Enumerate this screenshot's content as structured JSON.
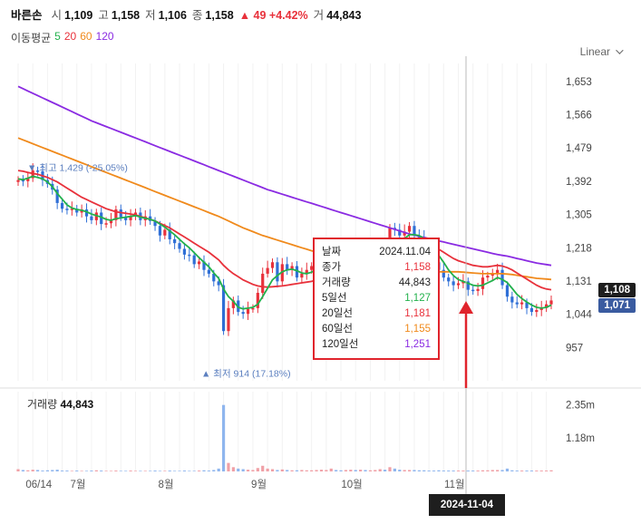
{
  "header": {
    "name": "바른손",
    "open_label": "시",
    "open": "1,109",
    "high_label": "고",
    "high": "1,158",
    "low_label": "저",
    "low": "1,106",
    "close_label": "종",
    "close": "1,158",
    "change": "▲ 49 +4.42%",
    "volume_label": "거",
    "volume": "44,843"
  },
  "moving_avg": {
    "label": "이동평균",
    "periods": [
      {
        "label": "5",
        "color": "#22b14c"
      },
      {
        "label": "20",
        "color": "#e8313b"
      },
      {
        "label": "60",
        "color": "#f08a1c"
      },
      {
        "label": "120",
        "color": "#8a2be2"
      }
    ]
  },
  "scale_mode": "Linear",
  "tooltip": {
    "rows": [
      {
        "label": "날짜",
        "value": "2024.11.04",
        "color": "#222222"
      },
      {
        "label": "종가",
        "value": "1,158",
        "color": "#e8313b"
      },
      {
        "label": "거래량",
        "value": "44,843",
        "color": "#222222"
      },
      {
        "label": "5일선",
        "value": "1,127",
        "color": "#22b14c"
      },
      {
        "label": "20일선",
        "value": "1,181",
        "color": "#e8313b"
      },
      {
        "label": "60일선",
        "value": "1,155",
        "color": "#f08a1c"
      },
      {
        "label": "120일선",
        "value": "1,251",
        "color": "#8a2be2"
      }
    ]
  },
  "volume_panel": {
    "label": "거래량",
    "value": "44,843"
  },
  "crosshair_date": "2024-11-04",
  "price_tags": [
    {
      "value": "1,108",
      "price": 1108,
      "color": "#1e1e1e"
    },
    {
      "value": "1,071",
      "price": 1071,
      "color": "#3a5ba0"
    }
  ],
  "colors": {
    "up": "#e8313b",
    "down": "#2f6fd6",
    "grid": "#eeeeee",
    "annotation_arrow": "#e0242c"
  },
  "chart_data": {
    "type": "candlestick",
    "y_axis": {
      "ticks": [
        1653,
        1566,
        1479,
        1392,
        1305,
        1218,
        1131,
        1044,
        957
      ],
      "range": [
        870,
        1700
      ],
      "scale": "linear"
    },
    "x_axis": {
      "labels": [
        "06/14",
        "7월",
        "8월",
        "9월",
        "10월",
        "11월"
      ]
    },
    "volume_axis": {
      "ticks": [
        "2.35m",
        "1.18m"
      ],
      "max": 2.5
    },
    "annotations": {
      "max": {
        "label": "▼ 최고 1,429 (-25.05%)",
        "value": 1429
      },
      "min": {
        "label": "▲ 최저 914 (17.18%)",
        "value": 914
      }
    },
    "close": [
      1395,
      1392,
      1400,
      1420,
      1418,
      1395,
      1385,
      1370,
      1335,
      1320,
      1318,
      1320,
      1310,
      1318,
      1300,
      1290,
      1310,
      1280,
      1282,
      1290,
      1318,
      1298,
      1290,
      1300,
      1310,
      1290,
      1300,
      1288,
      1275,
      1250,
      1265,
      1240,
      1230,
      1215,
      1200,
      1198,
      1175,
      1182,
      1160,
      1150,
      1130,
      1120,
      1000,
      1060,
      1080,
      1050,
      1045,
      1058,
      1060,
      1100,
      1150,
      1165,
      1180,
      1130,
      1175,
      1160,
      1170,
      1140,
      1150,
      1160,
      1170,
      1180,
      1190,
      1210,
      1220,
      1180,
      1130,
      1150,
      1180,
      1160,
      1205,
      1150,
      1160,
      1175,
      1200,
      1195,
      1270,
      1265,
      1250,
      1260,
      1275,
      1250,
      1245,
      1220,
      1200,
      1180,
      1160,
      1140,
      1130,
      1120,
      1125,
      1130,
      1108,
      1105,
      1110,
      1140,
      1145,
      1150,
      1160,
      1120,
      1090,
      1075,
      1070,
      1075,
      1060,
      1050,
      1055,
      1060,
      1070,
      1080
    ],
    "ma5": [
      1398,
      1396,
      1400,
      1405,
      1402,
      1398,
      1390,
      1378,
      1360,
      1345,
      1330,
      1322,
      1318,
      1316,
      1312,
      1306,
      1302,
      1298,
      1292,
      1290,
      1294,
      1296,
      1298,
      1300,
      1302,
      1298,
      1295,
      1292,
      1288,
      1280,
      1272,
      1262,
      1252,
      1240,
      1228,
      1218,
      1205,
      1192,
      1180,
      1168,
      1152,
      1138,
      1110,
      1090,
      1078,
      1062,
      1058,
      1060,
      1062,
      1070,
      1090,
      1112,
      1134,
      1145,
      1155,
      1160,
      1162,
      1158,
      1152,
      1150,
      1154,
      1162,
      1170,
      1180,
      1192,
      1198,
      1190,
      1180,
      1172,
      1165,
      1168,
      1170,
      1172,
      1178,
      1182,
      1185,
      1200,
      1215,
      1228,
      1242,
      1252,
      1252,
      1250,
      1242,
      1230,
      1215,
      1198,
      1180,
      1160,
      1145,
      1135,
      1130,
      1125,
      1120,
      1118,
      1120,
      1126,
      1132,
      1140,
      1135,
      1127,
      1112,
      1096,
      1085,
      1076,
      1068,
      1062,
      1060,
      1062,
      1068
    ],
    "ma20": [
      1420,
      1418,
      1415,
      1412,
      1410,
      1406,
      1402,
      1396,
      1390,
      1382,
      1374,
      1366,
      1358,
      1350,
      1344,
      1338,
      1332,
      1326,
      1320,
      1316,
      1312,
      1310,
      1308,
      1306,
      1304,
      1300,
      1296,
      1292,
      1288,
      1282,
      1276,
      1270,
      1262,
      1254,
      1246,
      1238,
      1230,
      1222,
      1214,
      1206,
      1196,
      1186,
      1172,
      1160,
      1150,
      1142,
      1134,
      1128,
      1122,
      1118,
      1116,
      1115,
      1116,
      1117,
      1118,
      1120,
      1122,
      1124,
      1126,
      1128,
      1130,
      1134,
      1138,
      1142,
      1146,
      1148,
      1150,
      1152,
      1154,
      1156,
      1158,
      1160,
      1162,
      1166,
      1172,
      1178,
      1186,
      1196,
      1206,
      1214,
      1220,
      1224,
      1226,
      1226,
      1224,
      1220,
      1214,
      1206,
      1198,
      1190,
      1184,
      1180,
      1176,
      1172,
      1170,
      1168,
      1168,
      1170,
      1172,
      1170,
      1166,
      1160,
      1152,
      1144,
      1136,
      1128,
      1120,
      1114,
      1110,
      1108
    ],
    "ma60": [
      1505,
      1500,
      1495,
      1490,
      1485,
      1480,
      1475,
      1470,
      1465,
      1460,
      1455,
      1450,
      1445,
      1440,
      1435,
      1430,
      1425,
      1420,
      1415,
      1410,
      1405,
      1400,
      1395,
      1390,
      1385,
      1380,
      1375,
      1370,
      1365,
      1360,
      1355,
      1350,
      1345,
      1340,
      1335,
      1330,
      1325,
      1320,
      1315,
      1310,
      1305,
      1300,
      1294,
      1288,
      1282,
      1276,
      1270,
      1265,
      1260,
      1255,
      1250,
      1246,
      1242,
      1238,
      1234,
      1230,
      1226,
      1222,
      1218,
      1214,
      1210,
      1207,
      1204,
      1201,
      1198,
      1195,
      1192,
      1189,
      1186,
      1183,
      1180,
      1178,
      1176,
      1174,
      1172,
      1170,
      1168,
      1166,
      1164,
      1162,
      1160,
      1159,
      1158,
      1157,
      1156,
      1155,
      1155,
      1155,
      1155,
      1155,
      1155,
      1154,
      1153,
      1152,
      1151,
      1150,
      1150,
      1150,
      1150,
      1150,
      1149,
      1148,
      1146,
      1144,
      1142,
      1140,
      1138,
      1137,
      1136,
      1135
    ],
    "ma120": [
      1640,
      1634,
      1628,
      1622,
      1616,
      1610,
      1604,
      1598,
      1592,
      1586,
      1580,
      1574,
      1568,
      1562,
      1556,
      1550,
      1545,
      1540,
      1535,
      1530,
      1525,
      1520,
      1515,
      1510,
      1505,
      1500,
      1495,
      1490,
      1485,
      1480,
      1475,
      1470,
      1465,
      1460,
      1455,
      1450,
      1445,
      1440,
      1435,
      1430,
      1425,
      1420,
      1415,
      1410,
      1405,
      1400,
      1395,
      1390,
      1385,
      1380,
      1375,
      1370,
      1366,
      1362,
      1358,
      1354,
      1350,
      1346,
      1342,
      1338,
      1334,
      1330,
      1326,
      1322,
      1318,
      1314,
      1310,
      1306,
      1302,
      1298,
      1294,
      1290,
      1286,
      1282,
      1278,
      1274,
      1270,
      1266,
      1262,
      1258,
      1254,
      1251,
      1248,
      1245,
      1242,
      1239,
      1236,
      1233,
      1230,
      1227,
      1224,
      1221,
      1218,
      1215,
      1212,
      1209,
      1206,
      1203,
      1200,
      1198,
      1196,
      1193,
      1190,
      1187,
      1184,
      1181,
      1178,
      1176,
      1174,
      1172
    ],
    "volume_m": [
      0.08,
      0.05,
      0.04,
      0.06,
      0.05,
      0.03,
      0.04,
      0.05,
      0.06,
      0.03,
      0.03,
      0.02,
      0.03,
      0.02,
      0.02,
      0.03,
      0.04,
      0.03,
      0.02,
      0.02,
      0.03,
      0.02,
      0.02,
      0.03,
      0.02,
      0.02,
      0.02,
      0.02,
      0.03,
      0.02,
      0.02,
      0.03,
      0.02,
      0.02,
      0.03,
      0.02,
      0.02,
      0.03,
      0.04,
      0.03,
      0.05,
      0.1,
      2.35,
      0.3,
      0.15,
      0.1,
      0.08,
      0.06,
      0.05,
      0.12,
      0.2,
      0.1,
      0.08,
      0.05,
      0.07,
      0.05,
      0.04,
      0.04,
      0.05,
      0.04,
      0.04,
      0.05,
      0.06,
      0.05,
      0.1,
      0.05,
      0.04,
      0.05,
      0.06,
      0.05,
      0.06,
      0.05,
      0.04,
      0.05,
      0.08,
      0.06,
      0.15,
      0.1,
      0.06,
      0.05,
      0.05,
      0.05,
      0.04,
      0.04,
      0.03,
      0.03,
      0.04,
      0.03,
      0.03,
      0.03,
      0.03,
      0.03,
      0.03,
      0.03,
      0.03,
      0.04,
      0.04,
      0.05,
      0.05,
      0.05,
      0.1,
      0.04,
      0.03,
      0.03,
      0.03,
      0.03,
      0.03,
      0.03,
      0.03,
      0.04
    ]
  }
}
